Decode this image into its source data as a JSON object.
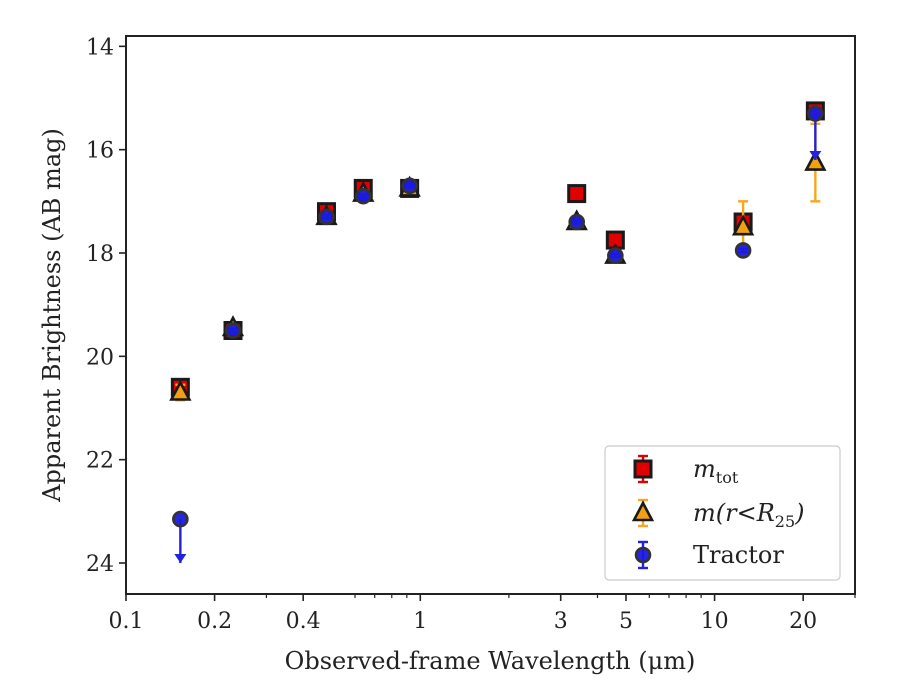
{
  "chart_data": {
    "type": "scatter",
    "title": "",
    "xlabel": "Observed-frame Wavelength (μm)",
    "ylabel": "Apparent Brightness (AB mag)",
    "xscale": "log",
    "xlim": [
      0.1,
      30
    ],
    "ylim": [
      24.6,
      13.8
    ],
    "y_inverted": true,
    "grid": false,
    "legend_position": "bottom-right",
    "x_ticks": [
      {
        "value": 0.1,
        "label": "0.1"
      },
      {
        "value": 0.2,
        "label": "0.2"
      },
      {
        "value": 0.4,
        "label": "0.4"
      },
      {
        "value": 1,
        "label": "1"
      },
      {
        "value": 3,
        "label": "3"
      },
      {
        "value": 5,
        "label": "5"
      },
      {
        "value": 10,
        "label": "10"
      },
      {
        "value": 20,
        "label": "20"
      }
    ],
    "y_ticks": [
      {
        "value": 14,
        "label": "14"
      },
      {
        "value": 16,
        "label": "16"
      },
      {
        "value": 18,
        "label": "18"
      },
      {
        "value": 20,
        "label": "20"
      },
      {
        "value": 22,
        "label": "22"
      },
      {
        "value": 24,
        "label": "24"
      }
    ],
    "series": [
      {
        "name": "m_tot",
        "legend_main": "m",
        "legend_sub": "tot",
        "marker": "square",
        "color": "#e00000",
        "errcolor": "#e00000",
        "points": [
          {
            "x": 0.153,
            "y": 20.6,
            "err": 0.1
          },
          {
            "x": 0.231,
            "y": 19.5,
            "err": 0.05
          },
          {
            "x": 0.48,
            "y": 17.2,
            "err": 0.08
          },
          {
            "x": 0.64,
            "y": 16.75,
            "err": 0.08
          },
          {
            "x": 0.92,
            "y": 16.75,
            "err": 0.05
          },
          {
            "x": 3.4,
            "y": 16.85,
            "err": 0.05
          },
          {
            "x": 4.6,
            "y": 17.75,
            "err": 0.05
          },
          {
            "x": 12.5,
            "y": 17.4,
            "err": 0.1
          },
          {
            "x": 22.0,
            "y": 15.25,
            "err": 0.05
          }
        ]
      },
      {
        "name": "m(r<R_25)",
        "legend_main": "m(r<R",
        "legend_sub": "25",
        "legend_tail": ")",
        "marker": "triangle",
        "color": "#f0a010",
        "errcolor": "#f5a623",
        "points": [
          {
            "x": 0.153,
            "y": 20.7,
            "err": 0.15
          },
          {
            "x": 0.231,
            "y": 19.45,
            "err": 0.05
          },
          {
            "x": 0.48,
            "y": 17.3,
            "err": 0.05
          },
          {
            "x": 0.64,
            "y": 16.85,
            "err": 0.05
          },
          {
            "x": 0.92,
            "y": 16.75,
            "err": 0.05
          },
          {
            "x": 3.4,
            "y": 17.4,
            "err": 0.05
          },
          {
            "x": 4.6,
            "y": 18.05,
            "err": 0.05
          },
          {
            "x": 12.5,
            "y": 17.5,
            "err": 0.5
          },
          {
            "x": 22.0,
            "y": 16.25,
            "err": 0.75
          }
        ]
      },
      {
        "name": "Tractor",
        "legend_main": "Tractor",
        "marker": "circle",
        "color": "#1a1adf",
        "errcolor": "#2222dd",
        "points": [
          {
            "x": 0.153,
            "y": 23.15,
            "err": 0,
            "upper_limit": true,
            "arrow_to": 24.0
          },
          {
            "x": 0.231,
            "y": 19.5,
            "err": 0.03
          },
          {
            "x": 0.48,
            "y": 17.3,
            "err": 0.03
          },
          {
            "x": 0.64,
            "y": 16.9,
            "err": 0.03
          },
          {
            "x": 0.92,
            "y": 16.7,
            "err": 0.03
          },
          {
            "x": 3.4,
            "y": 17.4,
            "err": 0.03
          },
          {
            "x": 4.6,
            "y": 18.05,
            "err": 0.03
          },
          {
            "x": 12.5,
            "y": 17.95,
            "err": 0.03
          },
          {
            "x": 22.0,
            "y": 15.3,
            "err": 0,
            "upper_limit": true,
            "arrow_to": 16.2
          }
        ]
      }
    ]
  }
}
